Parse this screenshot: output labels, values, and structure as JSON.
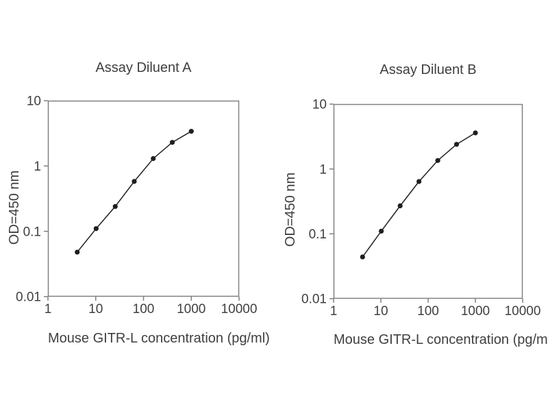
{
  "figure": {
    "background": "#ffffff",
    "text_color": "#3f3f3f",
    "axis_color": "#808080",
    "series_color": "#1f1f1f"
  },
  "chart_data": [
    {
      "type": "line",
      "title": "Assay Diluent A",
      "xlabel": "Mouse GITR-L concentration (pg/ml)",
      "ylabel": "OD=450 nm",
      "x_scale": "log",
      "y_scale": "log",
      "xlim": [
        1,
        10000
      ],
      "ylim": [
        0.01,
        10
      ],
      "x_ticks": [
        1,
        10,
        100,
        1000,
        10000
      ],
      "y_ticks": [
        10,
        1,
        0.1,
        0.01
      ],
      "grid": false,
      "legend": null,
      "marker": "circle",
      "x": [
        4.1,
        10.2,
        25.6,
        64,
        160,
        400,
        1000
      ],
      "y": [
        0.048,
        0.11,
        0.24,
        0.58,
        1.3,
        2.3,
        3.4
      ]
    },
    {
      "type": "line",
      "title": "Assay Diluent B",
      "xlabel": "Mouse GITR-L concentration (pg/ml)",
      "ylabel": "OD=450 nm",
      "x_scale": "log",
      "y_scale": "log",
      "xlim": [
        1,
        10000
      ],
      "ylim": [
        0.01,
        10
      ],
      "x_ticks": [
        1,
        10,
        100,
        1000,
        10000
      ],
      "y_ticks": [
        10,
        1,
        0.1,
        0.01
      ],
      "grid": false,
      "legend": null,
      "marker": "circle",
      "x": [
        4.1,
        10.2,
        25.6,
        64,
        160,
        400,
        1000
      ],
      "y": [
        0.044,
        0.11,
        0.27,
        0.64,
        1.35,
        2.4,
        3.6
      ]
    }
  ]
}
